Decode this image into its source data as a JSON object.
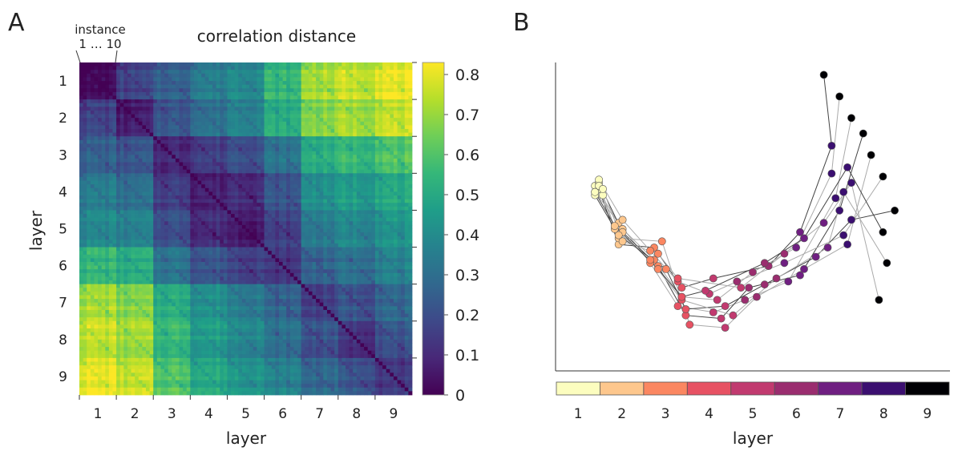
{
  "chart_data": [
    {
      "type": "heatmap",
      "panel_label": "A",
      "title": "correlation distance",
      "xlabel": "layer",
      "ylabel": "layer",
      "annotation": {
        "line1": "instance",
        "line2": "1 … 10"
      },
      "layers": [
        "1",
        "2",
        "3",
        "4",
        "5",
        "6",
        "7",
        "8",
        "9"
      ],
      "instances_per_layer": 10,
      "block_mean_distance": [
        [
          0.03,
          0.16,
          0.26,
          0.35,
          0.4,
          0.54,
          0.72,
          0.76,
          0.8
        ],
        [
          0.16,
          0.07,
          0.22,
          0.3,
          0.37,
          0.5,
          0.67,
          0.71,
          0.75
        ],
        [
          0.26,
          0.22,
          0.12,
          0.16,
          0.22,
          0.32,
          0.52,
          0.56,
          0.6
        ],
        [
          0.35,
          0.3,
          0.16,
          0.1,
          0.12,
          0.22,
          0.42,
          0.46,
          0.5
        ],
        [
          0.4,
          0.37,
          0.22,
          0.12,
          0.1,
          0.17,
          0.36,
          0.4,
          0.44
        ],
        [
          0.54,
          0.5,
          0.32,
          0.22,
          0.17,
          0.14,
          0.26,
          0.31,
          0.36
        ],
        [
          0.72,
          0.67,
          0.52,
          0.42,
          0.36,
          0.26,
          0.18,
          0.22,
          0.28
        ],
        [
          0.76,
          0.71,
          0.56,
          0.46,
          0.4,
          0.31,
          0.22,
          0.15,
          0.22
        ],
        [
          0.8,
          0.75,
          0.6,
          0.5,
          0.44,
          0.36,
          0.28,
          0.22,
          0.15
        ]
      ],
      "colorbar": {
        "min": 0,
        "max": 0.83,
        "ticks": [
          "0",
          "0.1",
          "0.2",
          "0.3",
          "0.4",
          "0.5",
          "0.6",
          "0.7",
          "0.8"
        ]
      },
      "colormap": [
        "#440154",
        "#482878",
        "#3e4989",
        "#31688e",
        "#26828e",
        "#1f9e89",
        "#35b779",
        "#6ece58",
        "#b5de2b",
        "#fde725"
      ]
    },
    {
      "type": "scatter",
      "panel_label": "B",
      "xlabel": "layer",
      "legend_labels": [
        "1",
        "2",
        "3",
        "4",
        "5",
        "6",
        "7",
        "8",
        "9"
      ],
      "layer_colors": [
        "#fcfdbf",
        "#fdc78d",
        "#fb8761",
        "#e75263",
        "#c13a6f",
        "#9a2d6f",
        "#6f1f81",
        "#3b0f70",
        "#000004"
      ],
      "x_range": [
        0,
        100
      ],
      "y_range": [
        0,
        100
      ],
      "trajectories": [
        [
          [
            11,
            59
          ],
          [
            16,
            41
          ],
          [
            25,
            40
          ],
          [
            32,
            27
          ],
          [
            40,
            30
          ],
          [
            54,
            34
          ],
          [
            62,
            45
          ],
          [
            70,
            73
          ],
          [
            68,
            96
          ]
        ],
        [
          [
            10,
            60
          ],
          [
            17,
            46
          ],
          [
            25,
            36
          ],
          [
            32,
            24
          ],
          [
            41,
            23
          ],
          [
            50,
            32
          ],
          [
            61,
            40
          ],
          [
            70,
            64
          ],
          [
            72,
            89
          ]
        ],
        [
          [
            10,
            58
          ],
          [
            16,
            48
          ],
          [
            24,
            35
          ],
          [
            31,
            21
          ],
          [
            40,
            19
          ],
          [
            48,
            23
          ],
          [
            59,
            29
          ],
          [
            71,
            56
          ],
          [
            75,
            82
          ]
        ],
        [
          [
            11,
            61
          ],
          [
            17,
            45
          ],
          [
            26,
            34
          ],
          [
            33,
            18
          ],
          [
            42,
            17
          ],
          [
            49,
            27
          ],
          [
            62,
            31
          ],
          [
            72,
            52
          ],
          [
            78,
            77
          ]
        ],
        [
          [
            12,
            57
          ],
          [
            16,
            43
          ],
          [
            27,
            42
          ],
          [
            34,
            15
          ],
          [
            43,
            14
          ],
          [
            51,
            24
          ],
          [
            63,
            33
          ],
          [
            74,
            41
          ],
          [
            80,
            70
          ]
        ],
        [
          [
            11,
            62
          ],
          [
            17,
            49
          ],
          [
            24,
            39
          ],
          [
            31,
            29
          ],
          [
            39,
            25
          ],
          [
            46,
            29
          ],
          [
            58,
            35
          ],
          [
            73,
            44
          ],
          [
            83,
            63
          ]
        ],
        [
          [
            10,
            57
          ],
          [
            16,
            44
          ],
          [
            28,
            33
          ],
          [
            33,
            20
          ],
          [
            43,
            21
          ],
          [
            53,
            28
          ],
          [
            66,
            37
          ],
          [
            75,
            49
          ],
          [
            86,
            52
          ]
        ],
        [
          [
            11,
            60
          ],
          [
            15,
            46
          ],
          [
            24,
            36
          ],
          [
            32,
            23
          ],
          [
            45,
            18
          ],
          [
            56,
            30
          ],
          [
            69,
            40
          ],
          [
            73,
            58
          ],
          [
            84,
            35
          ]
        ],
        [
          [
            12,
            59
          ],
          [
            17,
            42
          ],
          [
            26,
            38
          ],
          [
            31,
            30
          ],
          [
            47,
            27
          ],
          [
            58,
            38
          ],
          [
            68,
            48
          ],
          [
            75,
            61
          ],
          [
            82,
            23
          ]
        ],
        [
          [
            10,
            58
          ],
          [
            15,
            47
          ],
          [
            26,
            33
          ],
          [
            32,
            24
          ],
          [
            38,
            26
          ],
          [
            53,
            35
          ],
          [
            63,
            43
          ],
          [
            74,
            66
          ],
          [
            83,
            45
          ]
        ]
      ]
    }
  ]
}
